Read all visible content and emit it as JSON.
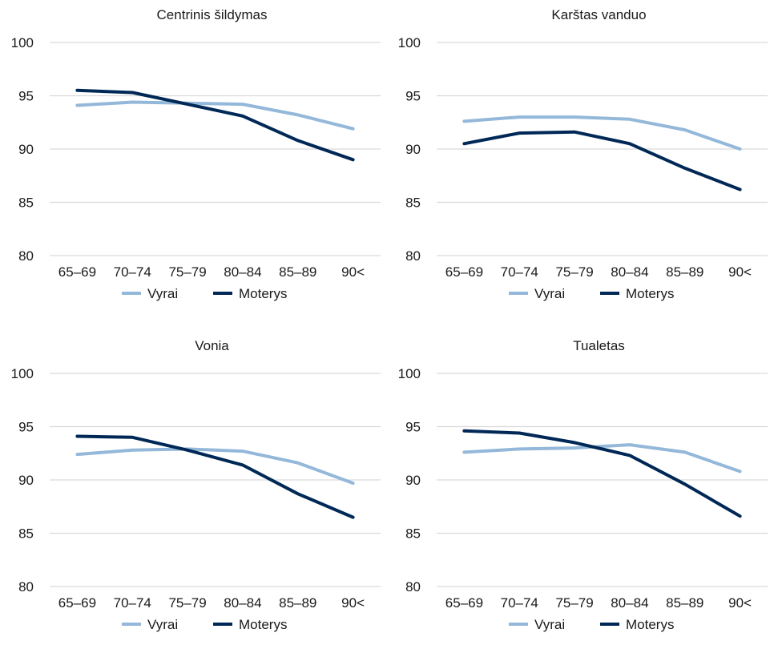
{
  "colors": {
    "vyrai": "#94b8d9",
    "moterys": "#002856",
    "grid": "#d9d9d9",
    "text": "#1a1a1a"
  },
  "chart_data": [
    {
      "type": "line",
      "title": "Centrinis šildymas",
      "categories": [
        "65–69",
        "70–74",
        "75–79",
        "80–84",
        "85–89",
        "90<"
      ],
      "ylim": [
        80,
        100
      ],
      "yticks": [
        80,
        85,
        90,
        95,
        100
      ],
      "grid": true,
      "legend_position": "bottom",
      "series": [
        {
          "name": "Vyrai",
          "color": "#94b8d9",
          "values": [
            94.1,
            94.4,
            94.3,
            94.2,
            93.2,
            91.9
          ]
        },
        {
          "name": "Moterys",
          "color": "#002856",
          "values": [
            95.5,
            95.3,
            94.2,
            93.1,
            90.8,
            89.0
          ]
        }
      ]
    },
    {
      "type": "line",
      "title": "Karštas vanduo",
      "categories": [
        "65–69",
        "70–74",
        "75–79",
        "80–84",
        "85–89",
        "90<"
      ],
      "ylim": [
        80,
        100
      ],
      "yticks": [
        80,
        85,
        90,
        95,
        100
      ],
      "grid": true,
      "legend_position": "bottom",
      "series": [
        {
          "name": "Vyrai",
          "color": "#94b8d9",
          "values": [
            92.6,
            93.0,
            93.0,
            92.8,
            91.8,
            90.0
          ]
        },
        {
          "name": "Moterys",
          "color": "#002856",
          "values": [
            90.5,
            91.5,
            91.6,
            90.5,
            88.2,
            86.2
          ]
        }
      ]
    },
    {
      "type": "line",
      "title": "Vonia",
      "categories": [
        "65–69",
        "70–74",
        "75–79",
        "80–84",
        "85–89",
        "90<"
      ],
      "ylim": [
        80,
        100
      ],
      "yticks": [
        80,
        85,
        90,
        95,
        100
      ],
      "grid": true,
      "legend_position": "bottom",
      "series": [
        {
          "name": "Vyrai",
          "color": "#94b8d9",
          "values": [
            92.4,
            92.8,
            92.9,
            92.7,
            91.6,
            89.7
          ]
        },
        {
          "name": "Moterys",
          "color": "#002856",
          "values": [
            94.1,
            94.0,
            92.8,
            91.4,
            88.7,
            86.5
          ]
        }
      ]
    },
    {
      "type": "line",
      "title": "Tualetas",
      "categories": [
        "65–69",
        "70–74",
        "75–79",
        "80–84",
        "85–89",
        "90<"
      ],
      "ylim": [
        80,
        100
      ],
      "yticks": [
        80,
        85,
        90,
        95,
        100
      ],
      "grid": true,
      "legend_position": "bottom",
      "series": [
        {
          "name": "Vyrai",
          "color": "#94b8d9",
          "values": [
            92.6,
            92.9,
            93.0,
            93.3,
            92.6,
            90.8
          ]
        },
        {
          "name": "Moterys",
          "color": "#002856",
          "values": [
            94.6,
            94.4,
            93.5,
            92.3,
            89.6,
            86.6
          ]
        }
      ]
    }
  ]
}
